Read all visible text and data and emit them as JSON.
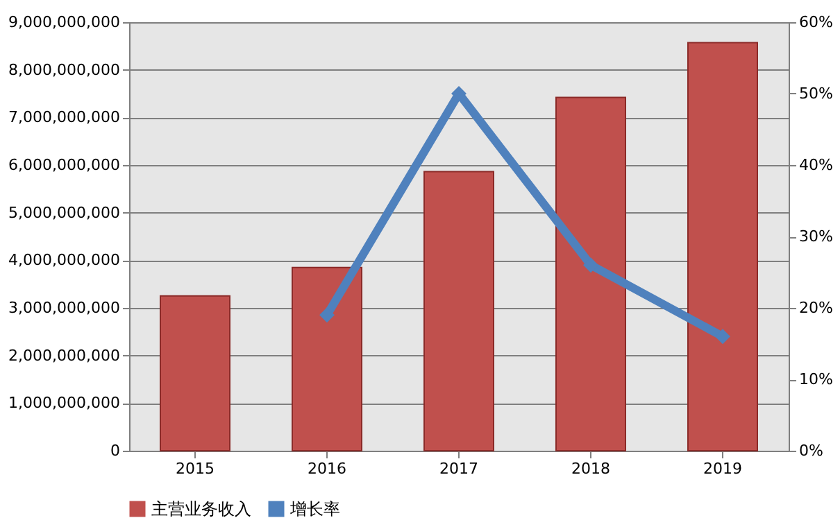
{
  "chart_data": {
    "type": "bar",
    "categories": [
      "2015",
      "2016",
      "2017",
      "2018",
      "2019"
    ],
    "series": [
      {
        "name": "主营业务收入",
        "color": "#c0504d",
        "values": [
          3250000000,
          3850000000,
          5860000000,
          7420000000,
          8570000000
        ]
      },
      {
        "name": "增长率",
        "type": "line",
        "axis": "y2",
        "color": "#4f81bd",
        "values": [
          null,
          19,
          50,
          26,
          16
        ]
      }
    ],
    "ylim": [
      0,
      9000000000
    ],
    "yticks": [
      0,
      {
        "value": 1000000000,
        "label": "1,000,000,000"
      },
      {
        "value": 2000000000,
        "label": "2,000,000,000"
      },
      {
        "value": 3000000000,
        "label": "3,000,000,000"
      },
      {
        "value": 4000000000,
        "label": "4,000,000,000"
      },
      {
        "value": 5000000000,
        "label": "5,000,000,000"
      },
      {
        "value": 6000000000,
        "label": "6,000,000,000"
      },
      {
        "value": 7000000000,
        "label": "7,000,000,000"
      },
      {
        "value": 8000000000,
        "label": "8,000,000,000"
      },
      {
        "value": 9000000000,
        "label": "9,000,000,000"
      }
    ],
    "y2lim": [
      0,
      60
    ],
    "y2ticks": [
      {
        "value": 0,
        "label": "0%"
      },
      {
        "value": 10,
        "label": "10%"
      },
      {
        "value": 20,
        "label": "20%"
      },
      {
        "value": 30,
        "label": "30%"
      },
      {
        "value": 40,
        "label": "40%"
      },
      {
        "value": 50,
        "label": "50%"
      },
      {
        "value": 60,
        "label": "60%"
      }
    ],
    "grid": "y",
    "legend": "bottom",
    "marker": "diamond",
    "line_style": "solid"
  }
}
